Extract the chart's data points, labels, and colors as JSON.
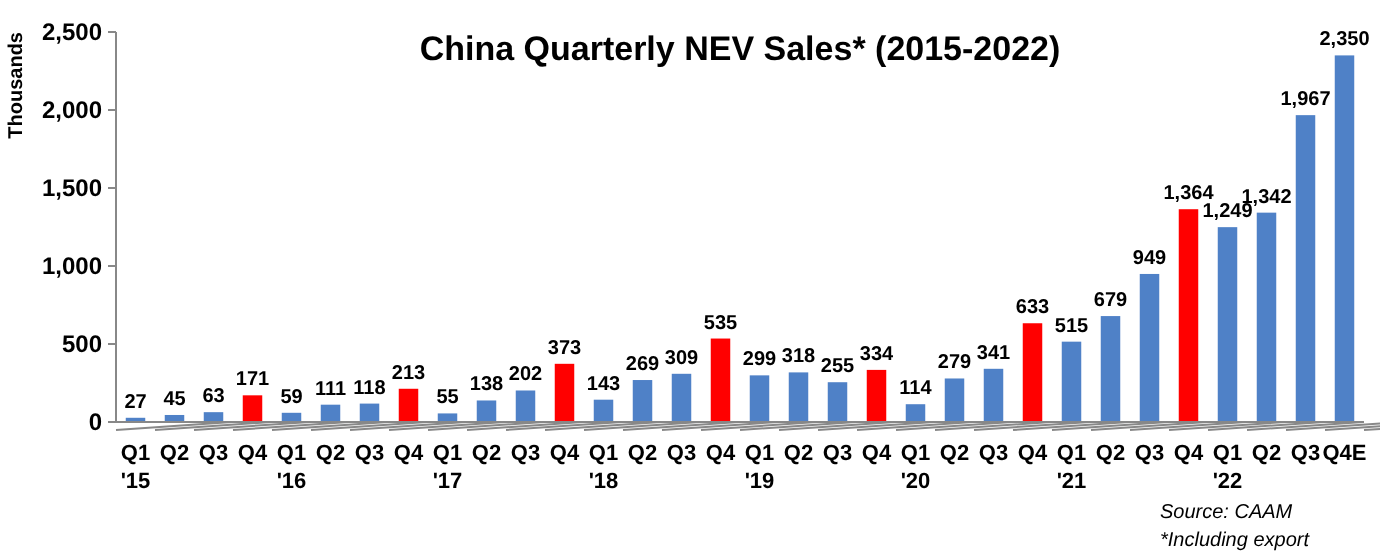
{
  "chart_data": {
    "type": "bar",
    "title": "China Quarterly NEV Sales* (2015-2022)",
    "ylabel": "Thousands",
    "categories": [
      "Q1\n'15",
      "Q2",
      "Q3",
      "Q4",
      "Q1\n'16",
      "Q2",
      "Q3",
      "Q4",
      "Q1\n'17",
      "Q2",
      "Q3",
      "Q4",
      "Q1\n'18",
      "Q2",
      "Q3",
      "Q4",
      "Q1\n'19",
      "Q2",
      "Q3",
      "Q4",
      "Q1\n'20",
      "Q2",
      "Q3",
      "Q4",
      "Q1\n'21",
      "Q2",
      "Q3",
      "Q4",
      "Q1\n'22",
      "Q2",
      "Q3",
      "Q4E"
    ],
    "values": [
      27,
      45,
      63,
      171,
      59,
      111,
      118,
      213,
      55,
      138,
      202,
      373,
      143,
      269,
      309,
      535,
      299,
      318,
      255,
      334,
      114,
      279,
      341,
      633,
      515,
      679,
      949,
      1364,
      1249,
      1342,
      1967,
      2350
    ],
    "colors": [
      "#4f81c7",
      "#4f81c7",
      "#4f81c7",
      "#ff0000",
      "#4f81c7",
      "#4f81c7",
      "#4f81c7",
      "#ff0000",
      "#4f81c7",
      "#4f81c7",
      "#4f81c7",
      "#ff0000",
      "#4f81c7",
      "#4f81c7",
      "#4f81c7",
      "#ff0000",
      "#4f81c7",
      "#4f81c7",
      "#4f81c7",
      "#ff0000",
      "#4f81c7",
      "#4f81c7",
      "#4f81c7",
      "#ff0000",
      "#4f81c7",
      "#4f81c7",
      "#4f81c7",
      "#ff0000",
      "#4f81c7",
      "#4f81c7",
      "#4f81c7",
      "#4f81c7"
    ],
    "ylim": [
      0,
      2500
    ],
    "yticks": [
      0,
      {
        "value": 500,
        "label": "500"
      },
      {
        "value": 1000,
        "label": "1,000"
      },
      {
        "value": 1500,
        "label": "1,500"
      },
      {
        "value": 2000,
        "label": "2,000"
      },
      {
        "value": 2500,
        "label": "2,500"
      }
    ],
    "value_labels": [
      "27",
      "45",
      "63",
      "171",
      "59",
      "111",
      "118",
      "213",
      "55",
      "138",
      "202",
      "373",
      "143",
      "269",
      "309",
      "535",
      "299",
      "318",
      "255",
      "334",
      "114",
      "279",
      "341",
      "633",
      "515",
      "679",
      "949",
      "1,364",
      "1,249",
      "1,342",
      "1,967",
      "2,350"
    ],
    "grid": false,
    "annotations": [
      "Source: CAAM",
      "*Including export"
    ]
  }
}
